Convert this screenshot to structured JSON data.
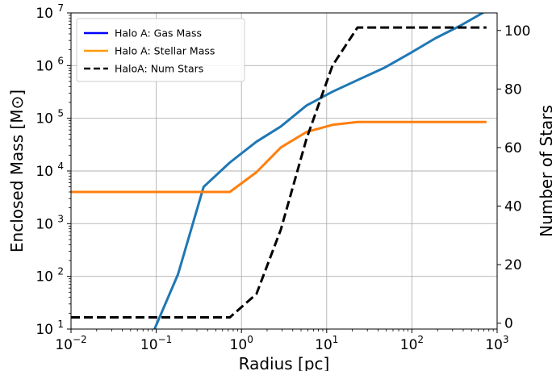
{
  "chart_data": {
    "type": "line",
    "xlabel": "Radius [pc]",
    "ylabel": "Enclosed Mass [M⊙]",
    "y2label": "Number of Stars",
    "x_scale": "log",
    "y_scale": "log",
    "xlim": [
      0.01,
      1000
    ],
    "ylim": [
      10,
      10000000
    ],
    "y2lim": [
      -2,
      106
    ],
    "grid": true,
    "legend_position": "top-left",
    "x_ticks": [
      {
        "value": 0.01,
        "base": "10",
        "exp": "−2"
      },
      {
        "value": 0.1,
        "base": "10",
        "exp": "−1"
      },
      {
        "value": 1,
        "base": "10",
        "exp": "0"
      },
      {
        "value": 10,
        "base": "10",
        "exp": "1"
      },
      {
        "value": 100,
        "base": "10",
        "exp": "2"
      },
      {
        "value": 1000,
        "base": "10",
        "exp": "3"
      }
    ],
    "y_ticks": [
      {
        "value": 10,
        "base": "10",
        "exp": "1"
      },
      {
        "value": 100,
        "base": "10",
        "exp": "2"
      },
      {
        "value": 1000,
        "base": "10",
        "exp": "3"
      },
      {
        "value": 10000,
        "base": "10",
        "exp": "4"
      },
      {
        "value": 100000,
        "base": "10",
        "exp": "5"
      },
      {
        "value": 1000000,
        "base": "10",
        "exp": "6"
      },
      {
        "value": 10000000,
        "base": "10",
        "exp": "7"
      }
    ],
    "y2_ticks": [
      {
        "value": 0,
        "label": "0"
      },
      {
        "value": 20,
        "label": "20"
      },
      {
        "value": 40,
        "label": "40"
      },
      {
        "value": 60,
        "label": "60"
      },
      {
        "value": 80,
        "label": "80"
      },
      {
        "value": 100,
        "label": "100"
      }
    ],
    "legend": [
      {
        "label": "Halo A: Gas Mass",
        "color": "#0000ff",
        "style": "solid"
      },
      {
        "label": "Halo A: Stellar Mass",
        "color": "#ff9900",
        "style": "solid"
      },
      {
        "label": "HaloA: Num Stars",
        "color": "#000000",
        "style": "dashed"
      }
    ],
    "series": [
      {
        "name": "Halo A: Gas Mass",
        "axis": "left",
        "color": "#1f77b4",
        "style": "solid",
        "x": [
          0.09,
          0.18,
          0.36,
          0.73,
          1.5,
          2.9,
          5.8,
          11.7,
          23,
          47,
          94,
          188,
          375,
          750
        ],
        "y": [
          8,
          110,
          5000,
          14500,
          36000,
          70000,
          175000,
          320000,
          530000,
          900000,
          1700000,
          3300000,
          5800000,
          11000000
        ]
      },
      {
        "name": "Halo A: Stellar Mass",
        "axis": "left",
        "color": "#ff7f0e",
        "style": "solid",
        "x": [
          0.01,
          0.09,
          0.36,
          0.73,
          1.5,
          2.9,
          5.8,
          11.7,
          23,
          47,
          94,
          188,
          375,
          750
        ],
        "y": [
          4000,
          4000,
          4000,
          4000,
          9500,
          28000,
          55000,
          75000,
          85000,
          85000,
          85000,
          85000,
          85000,
          85000
        ]
      },
      {
        "name": "HaloA: Num Stars",
        "axis": "right",
        "color": "#000000",
        "style": "dashed",
        "x": [
          0.01,
          0.09,
          0.36,
          0.73,
          1.5,
          2.9,
          5.8,
          11.7,
          23,
          47,
          94,
          188,
          375,
          750
        ],
        "y": [
          2,
          2,
          2,
          2,
          10,
          32,
          63,
          88,
          101,
          101,
          101,
          101,
          101,
          101
        ]
      }
    ]
  }
}
